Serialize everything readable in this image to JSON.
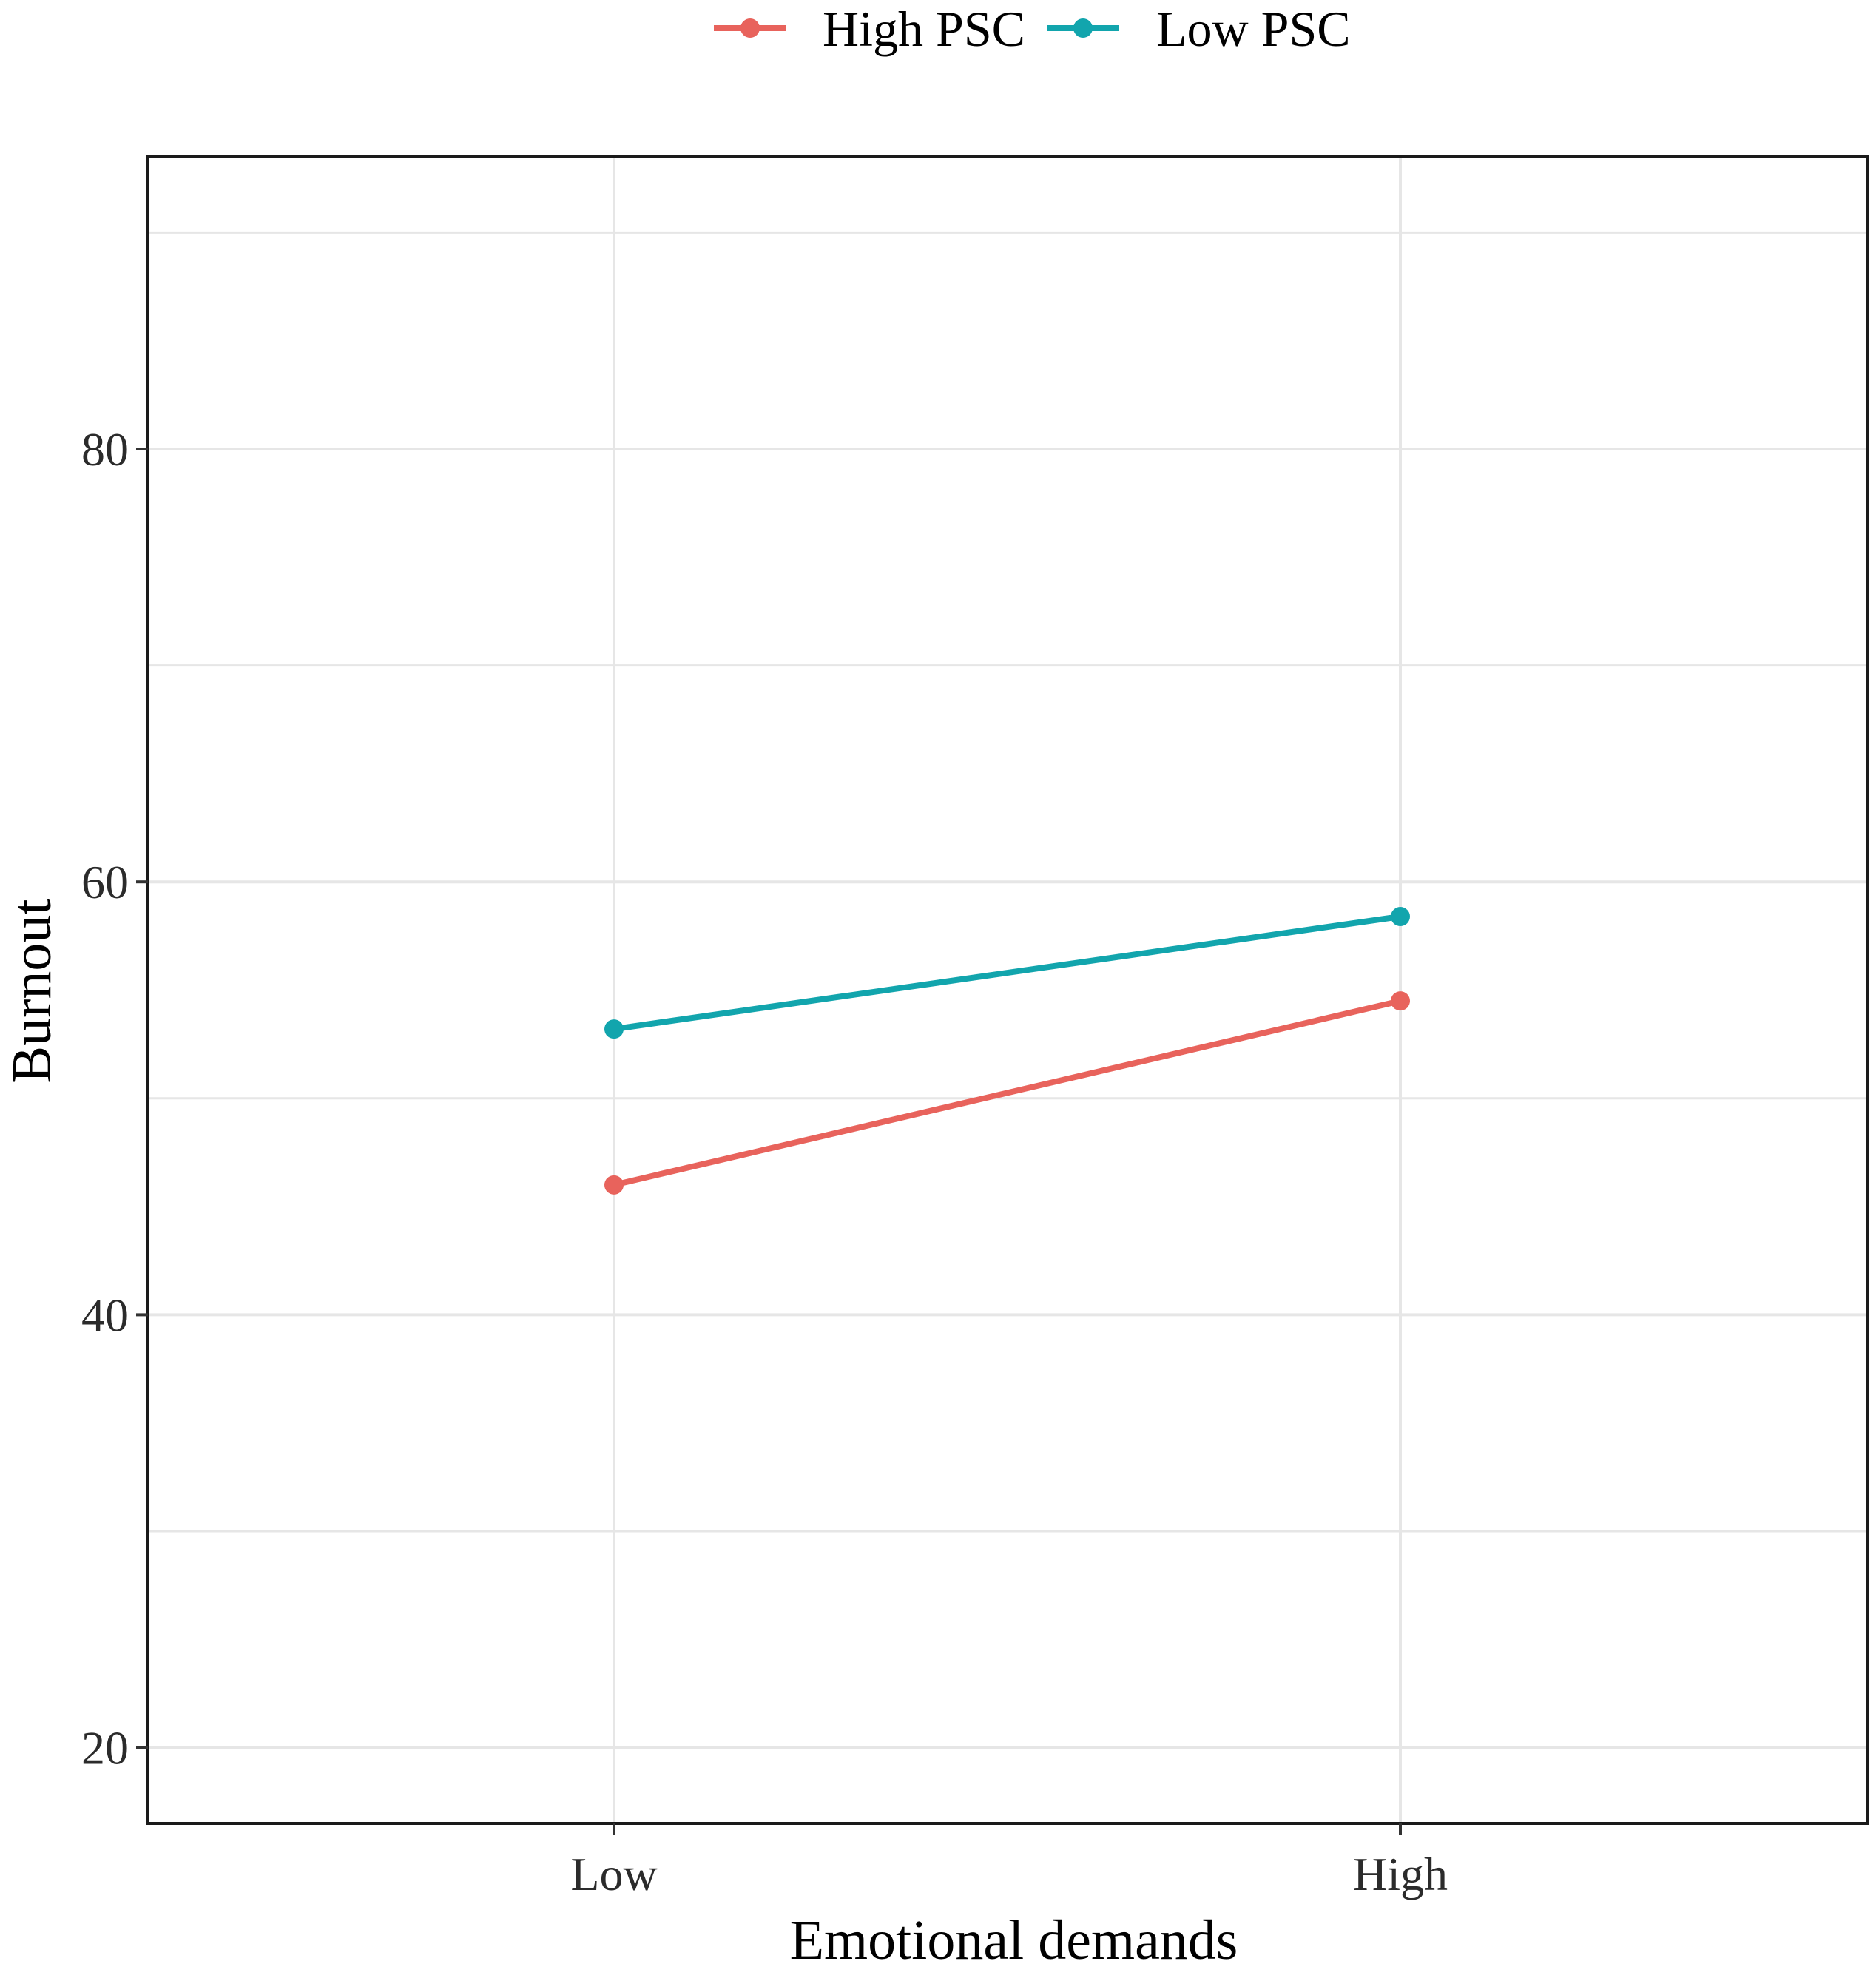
{
  "chart_data": {
    "type": "line",
    "title": "",
    "xlabel": "Emotional demands",
    "ylabel": "Burnout",
    "categories": [
      "Low",
      "High"
    ],
    "ylim": [
      16.5,
      93.5
    ],
    "yticks": [
      20,
      40,
      60,
      80
    ],
    "grid": true,
    "legend_position": "top",
    "series": [
      {
        "name": "High PSC",
        "color": "#e8635c",
        "values": [
          46,
          54.5
        ]
      },
      {
        "name": "Low PSC",
        "color": "#12a5ad",
        "values": [
          53.2,
          58.4
        ]
      }
    ]
  }
}
